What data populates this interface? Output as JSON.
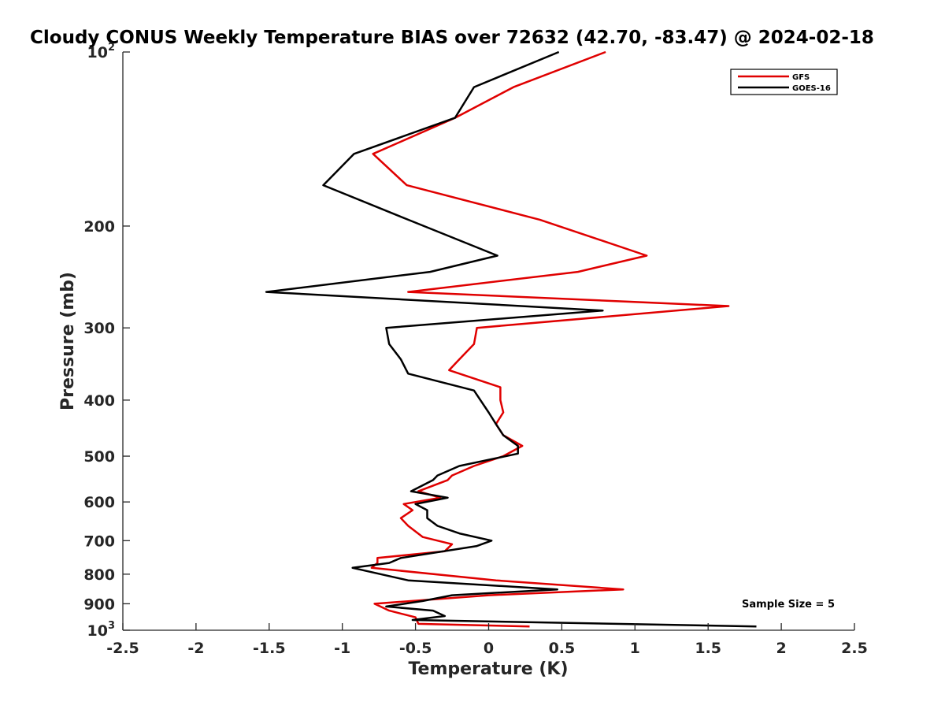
{
  "chart_data": {
    "type": "line",
    "title": "Cloudy CONUS Weekly Temperature BIAS over 72632 (42.70, -83.47) @ 2024-02-18",
    "xlabel": "Temperature (K)",
    "ylabel": "Pressure (mb)",
    "xlim": [
      -2.5,
      2.5
    ],
    "ylim": [
      100,
      1000
    ],
    "yscale": "log",
    "yreversed": true,
    "xticks": [
      "-2.5",
      "-2",
      "-1.5",
      "-1",
      "-0.5",
      "0",
      "0.5",
      "1",
      "1.5",
      "2",
      "2.5"
    ],
    "yticks": [
      {
        "value": 100,
        "base": "10",
        "exp": "2"
      },
      {
        "value": 200,
        "label": "200"
      },
      {
        "value": 300,
        "label": "300"
      },
      {
        "value": 400,
        "label": "400"
      },
      {
        "value": 500,
        "label": "500"
      },
      {
        "value": 600,
        "label": "600"
      },
      {
        "value": 700,
        "label": "700"
      },
      {
        "value": 800,
        "label": "800"
      },
      {
        "value": 900,
        "label": "900"
      },
      {
        "value": 1000,
        "base": "10",
        "exp": "3"
      }
    ],
    "legend_position": "top-right",
    "series": [
      {
        "name": "GFS",
        "color": "#e00000",
        "points": [
          [
            0.8,
            100
          ],
          [
            0.17,
            115
          ],
          [
            -0.23,
            130
          ],
          [
            -0.79,
            150
          ],
          [
            -0.56,
            170
          ],
          [
            0.35,
            195
          ],
          [
            1.08,
            225
          ],
          [
            0.61,
            240
          ],
          [
            -0.55,
            260
          ],
          [
            1.64,
            275
          ],
          [
            -0.08,
            300
          ],
          [
            -0.1,
            320
          ],
          [
            -0.2,
            340
          ],
          [
            -0.27,
            355
          ],
          [
            0.08,
            380
          ],
          [
            0.08,
            400
          ],
          [
            0.1,
            420
          ],
          [
            0.05,
            440
          ],
          [
            0.1,
            460
          ],
          [
            0.23,
            480
          ],
          [
            0.1,
            500
          ],
          [
            -0.1,
            520
          ],
          [
            -0.25,
            540
          ],
          [
            -0.28,
            550
          ],
          [
            -0.48,
            575
          ],
          [
            -0.33,
            590
          ],
          [
            -0.58,
            605
          ],
          [
            -0.52,
            620
          ],
          [
            -0.6,
            640
          ],
          [
            -0.55,
            660
          ],
          [
            -0.45,
            690
          ],
          [
            -0.25,
            710
          ],
          [
            -0.3,
            730
          ],
          [
            -0.76,
            750
          ],
          [
            -0.76,
            765
          ],
          [
            -0.8,
            780
          ],
          [
            0.05,
            820
          ],
          [
            0.92,
            850
          ],
          [
            0.0,
            870
          ],
          [
            -0.78,
            900
          ],
          [
            -0.68,
            925
          ],
          [
            -0.5,
            950
          ],
          [
            -0.48,
            975
          ],
          [
            0.28,
            985
          ]
        ]
      },
      {
        "name": "GOES-16",
        "color": "#000000",
        "points": [
          [
            0.48,
            100
          ],
          [
            -0.1,
            115
          ],
          [
            -0.23,
            130
          ],
          [
            -0.92,
            150
          ],
          [
            -1.13,
            170
          ],
          [
            -0.55,
            195
          ],
          [
            0.06,
            225
          ],
          [
            -0.4,
            240
          ],
          [
            -1.52,
            260
          ],
          [
            0.78,
            280
          ],
          [
            -0.7,
            300
          ],
          [
            -0.68,
            320
          ],
          [
            -0.6,
            340
          ],
          [
            -0.55,
            360
          ],
          [
            -0.1,
            385
          ],
          [
            0.0,
            420
          ],
          [
            0.05,
            440
          ],
          [
            0.1,
            460
          ],
          [
            0.2,
            480
          ],
          [
            0.2,
            495
          ],
          [
            -0.2,
            520
          ],
          [
            -0.35,
            540
          ],
          [
            -0.38,
            550
          ],
          [
            -0.53,
            575
          ],
          [
            -0.28,
            590
          ],
          [
            -0.5,
            605
          ],
          [
            -0.42,
            620
          ],
          [
            -0.42,
            640
          ],
          [
            -0.35,
            660
          ],
          [
            -0.2,
            680
          ],
          [
            0.02,
            700
          ],
          [
            -0.08,
            715
          ],
          [
            -0.6,
            750
          ],
          [
            -0.68,
            765
          ],
          [
            -0.93,
            780
          ],
          [
            -0.55,
            820
          ],
          [
            0.47,
            850
          ],
          [
            -0.25,
            870
          ],
          [
            -0.45,
            890
          ],
          [
            -0.7,
            910
          ],
          [
            -0.38,
            925
          ],
          [
            -0.3,
            945
          ],
          [
            -0.52,
            960
          ],
          [
            1.83,
            985
          ]
        ]
      }
    ],
    "annotation": "Sample Size = 5"
  }
}
